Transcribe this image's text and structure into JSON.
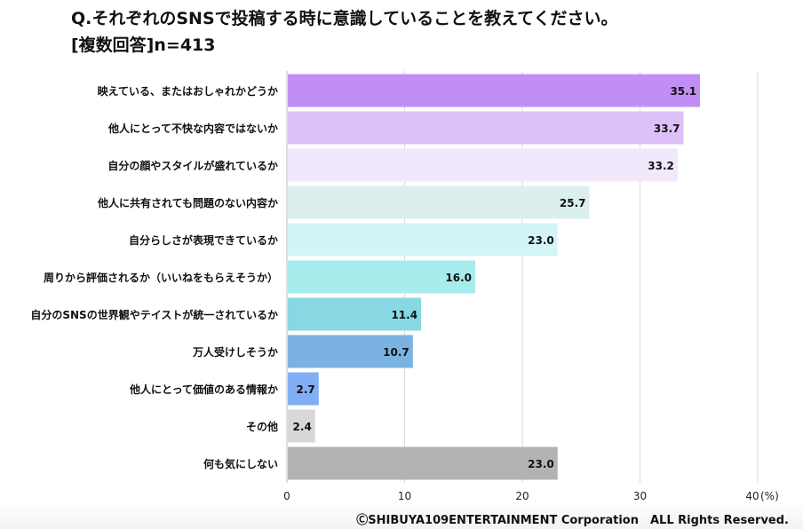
{
  "title": {
    "line1": "Q.それぞれのSNSで投稿する時に意識していることを教えてください。",
    "line2": "[複数回答]n=413"
  },
  "chart_data": {
    "type": "bar",
    "orientation": "horizontal",
    "categories": [
      "映えている、またはおしゃれかどうか",
      "他人にとって不快な内容ではないか",
      "自分の顔やスタイルが盛れているか",
      "他人に共有されても問題のない内容か",
      "自分らしさが表現できているか",
      "周りから評価されるか（いいねをもらえそうか）",
      "自分のSNSの世界観やテイストが統一されているか",
      "万人受けしそうか",
      "他人にとって価値のある情報か",
      "その他",
      "何も気にしない"
    ],
    "values": [
      35.1,
      33.7,
      33.2,
      25.7,
      23.0,
      16.0,
      11.4,
      10.7,
      2.7,
      2.4,
      23.0
    ],
    "value_labels": [
      "35.1",
      "33.7",
      "33.2",
      "25.7",
      "23.0",
      "16.0",
      "11.4",
      "10.7",
      "2.7",
      "2.4",
      "23.0"
    ],
    "colors": [
      "#c18ef5",
      "#dcc1f8",
      "#f2e8fc",
      "#dcefef",
      "#d4f5f8",
      "#a8eced",
      "#87d8e2",
      "#7ab3e2",
      "#82aef5",
      "#d8d8d8",
      "#b3b3b3"
    ],
    "xlim": [
      0,
      40
    ],
    "xticks": [
      "0",
      "10",
      "20",
      "30",
      "40"
    ],
    "unit_label": "(%)",
    "grid": true,
    "legend": "none"
  },
  "footer": {
    "copyright": "ⒸSHIBUYA109ENTERTAINMENT Corporation　ALL Rights Reserved."
  }
}
